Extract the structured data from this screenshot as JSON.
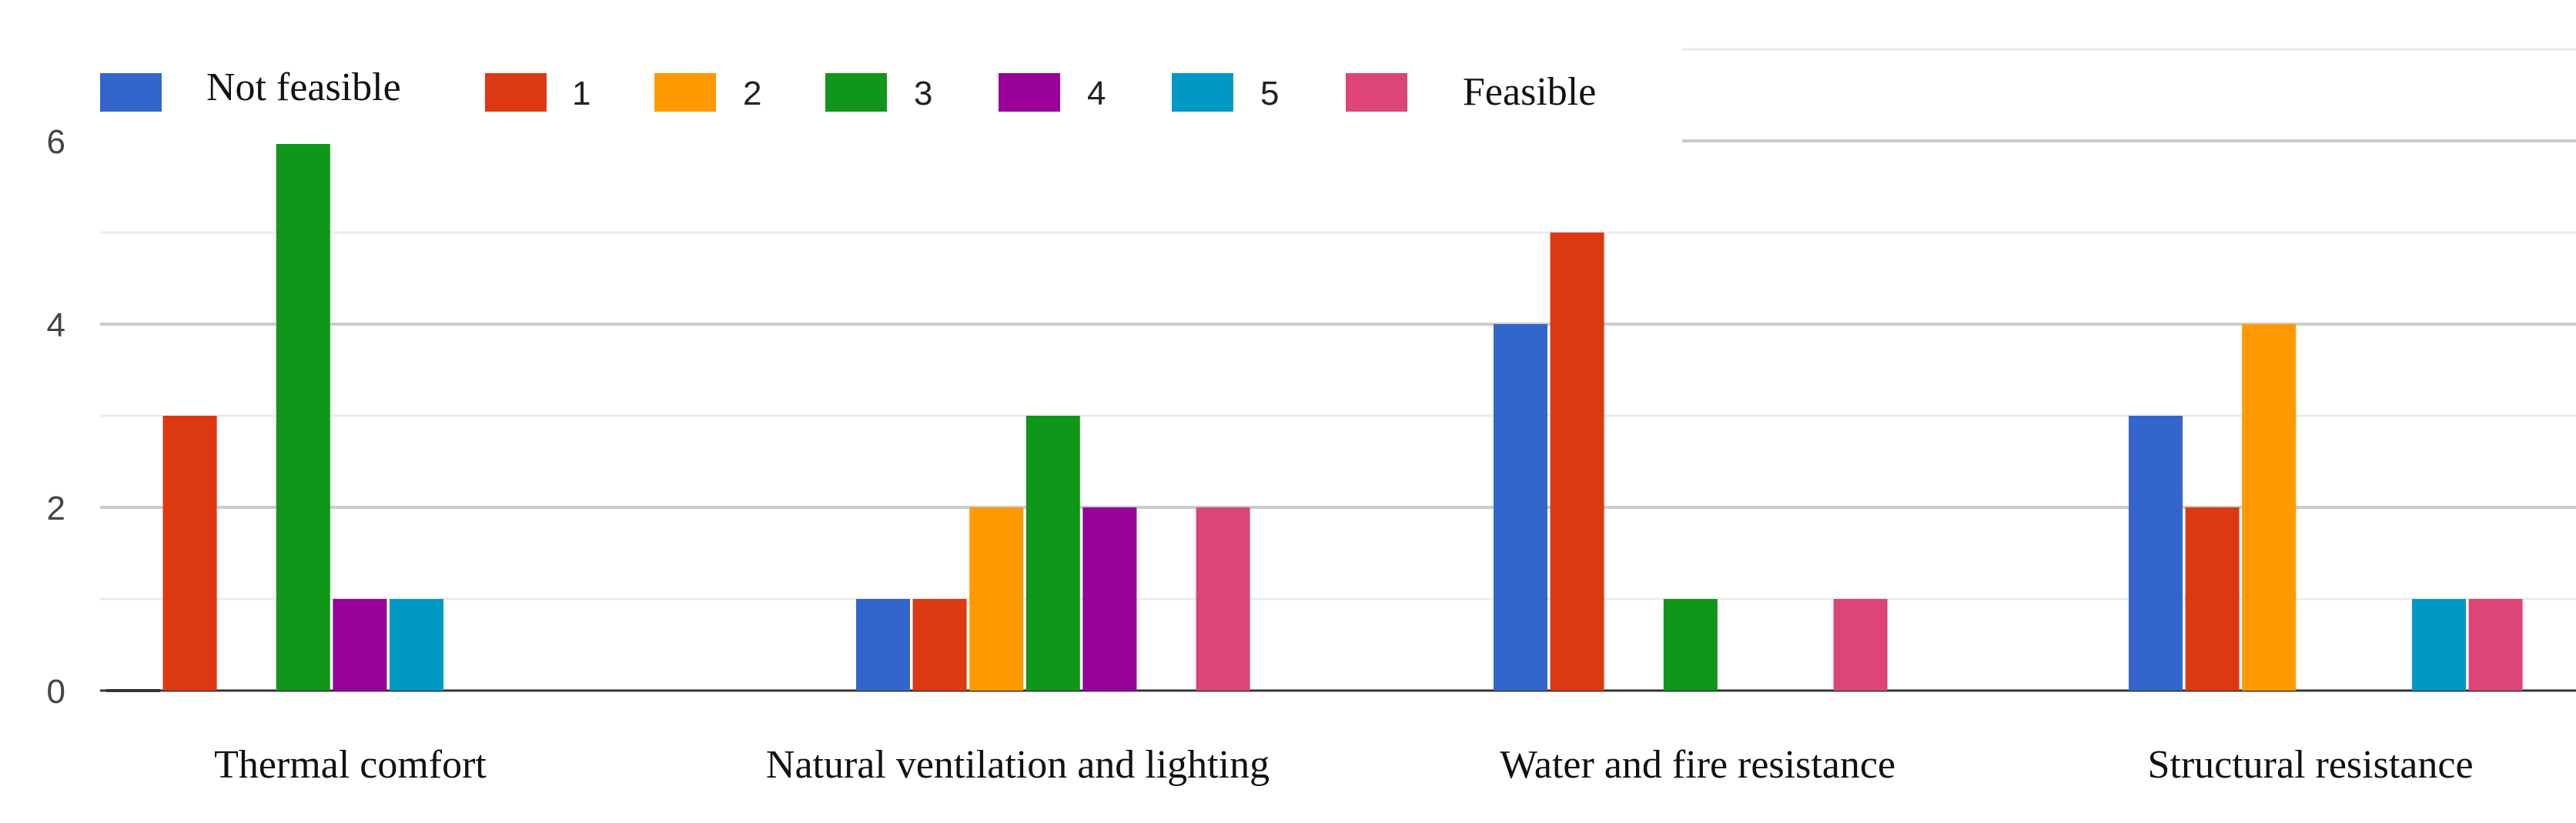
{
  "chart_data": {
    "type": "bar",
    "categories": [
      "Thermal comfort",
      "Natural ventilation and lighting",
      "Water and fire resistance",
      "Structural resistance"
    ],
    "series": [
      {
        "name": "Not feasible",
        "color": "#3366cc",
        "values": [
          0,
          1,
          4,
          3
        ]
      },
      {
        "name": "1",
        "color": "#dc3912",
        "values": [
          3,
          1,
          5,
          2
        ]
      },
      {
        "name": "2",
        "color": "#ff9900",
        "values": [
          0,
          2,
          0,
          4
        ]
      },
      {
        "name": "3",
        "color": "#109618",
        "values": [
          6,
          3,
          1,
          0
        ]
      },
      {
        "name": "4",
        "color": "#990099",
        "values": [
          1,
          2,
          0,
          0
        ]
      },
      {
        "name": "5",
        "color": "#0099c6",
        "values": [
          1,
          0,
          0,
          1
        ]
      },
      {
        "name": "Feasible",
        "color": "#dd4477",
        "values": [
          0,
          2,
          1,
          1
        ]
      }
    ],
    "yticks": [
      "0",
      "2",
      "4",
      "6"
    ],
    "ylim": [
      0,
      7
    ],
    "legend_position": "top",
    "grid": true
  }
}
